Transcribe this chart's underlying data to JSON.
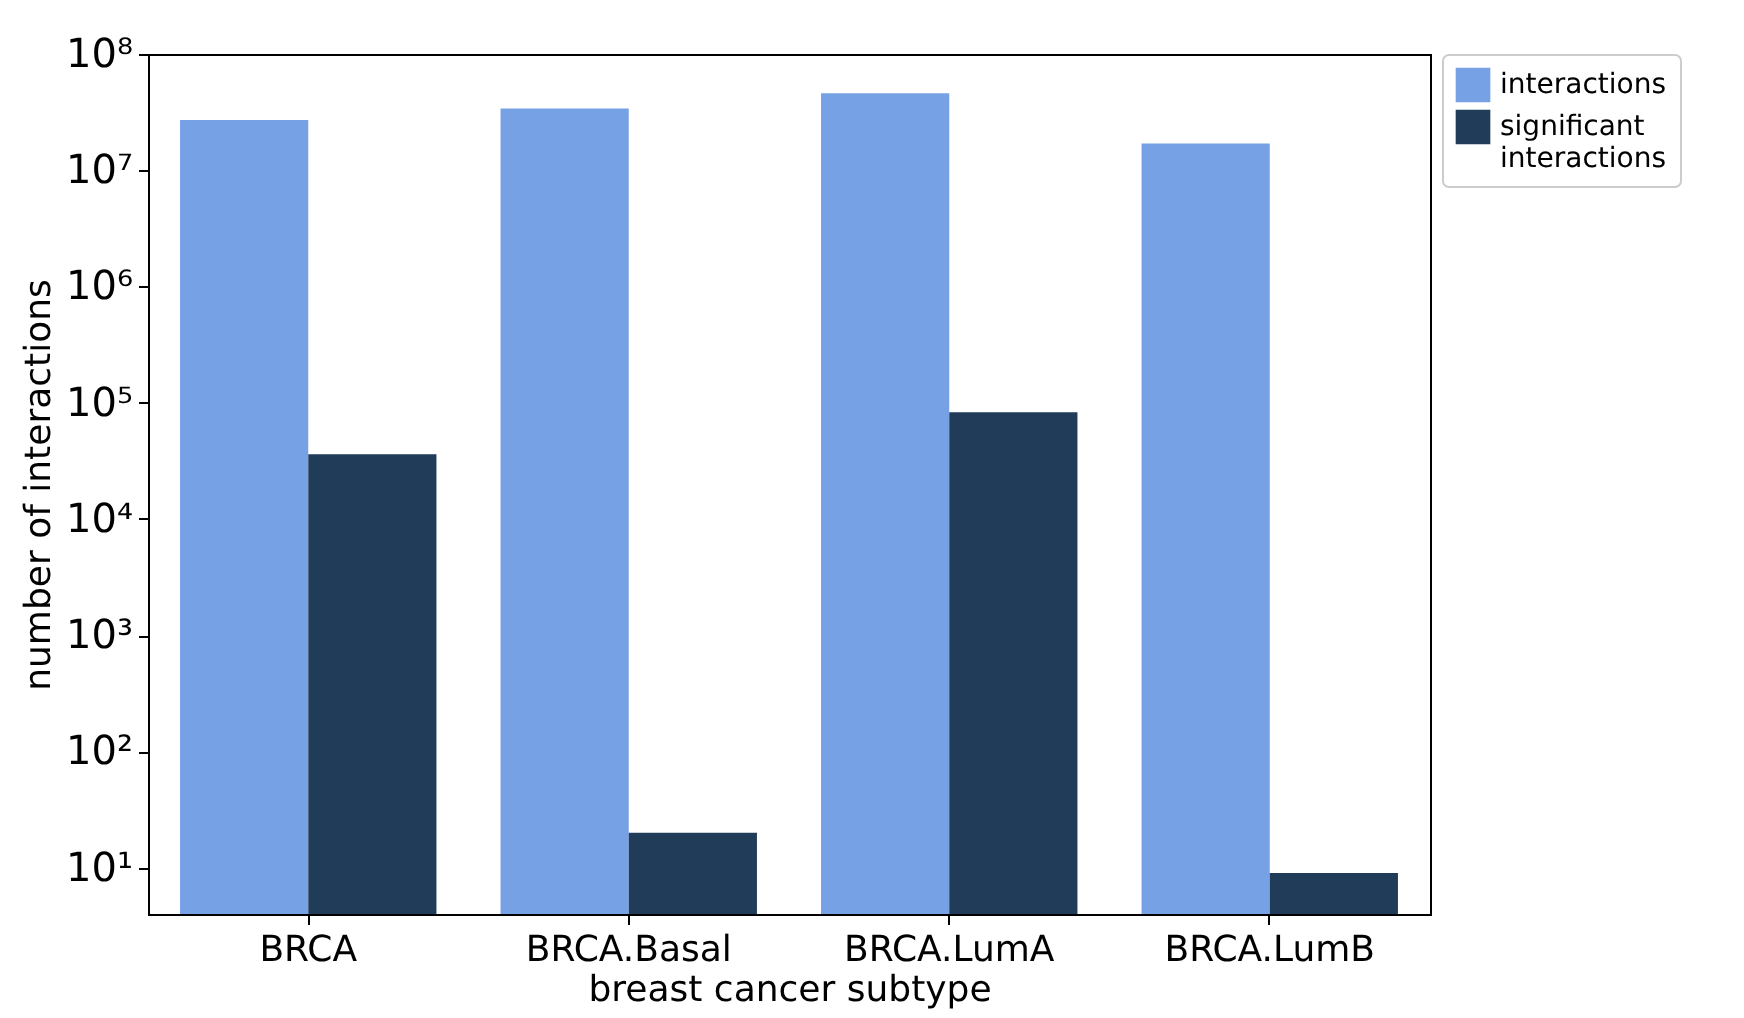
{
  "chart_data": {
    "type": "bar",
    "xlabel": "breast cancer subtype",
    "ylabel": "number of interactions",
    "categories": [
      "BRCA",
      "BRCA.Basal",
      "BRCA.LumA",
      "BRCA.LumB"
    ],
    "series": [
      {
        "name": "interactions",
        "color": "#77a1e5",
        "values": [
          27000000,
          34000000,
          46000000,
          17000000
        ]
      },
      {
        "name": "significant interactions",
        "color": "#213c59",
        "values": [
          36000,
          20,
          83000,
          9
        ]
      }
    ],
    "log": "y",
    "ylim": [
      4,
      100000000
    ],
    "yticks": [
      {
        "value": 10,
        "label": "10¹"
      },
      {
        "value": 100,
        "label": "10²"
      },
      {
        "value": 1000,
        "label": "10³"
      },
      {
        "value": 10000,
        "label": "10⁴"
      },
      {
        "value": 100000,
        "label": "10⁵"
      },
      {
        "value": 1000000,
        "label": "10⁶"
      },
      {
        "value": 10000000,
        "label": "10⁷"
      },
      {
        "value": 100000000,
        "label": "10⁸"
      }
    ],
    "grid": false,
    "legend": "right"
  }
}
